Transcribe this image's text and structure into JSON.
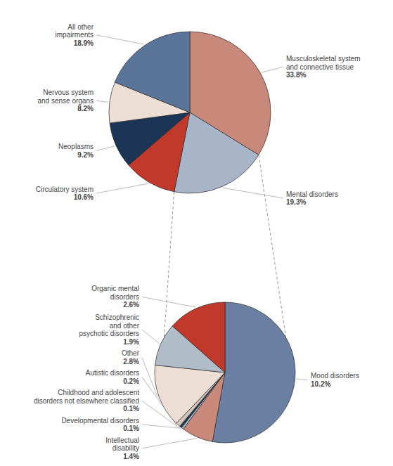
{
  "chart_data": [
    {
      "type": "pie",
      "categories": [
        "Musculoskeletal system\nand connective tissue",
        "Mental disorders",
        "Circulatory system",
        "Neoplasms",
        "Nervous system\nand sense organs",
        "All other\nimpairments"
      ],
      "values": [
        33.8,
        19.3,
        10.6,
        9.2,
        8.2,
        18.9
      ],
      "value_labels": [
        "33.8%",
        "19.3%",
        "10.6%",
        "9.2%",
        "8.2%",
        "18.9%"
      ],
      "colors": [
        "#c9897a",
        "#a8b5c8",
        "#c0392b",
        "#1c3557",
        "#ecddd5",
        "#5b7499"
      ],
      "data_labels": true
    },
    {
      "type": "pie",
      "categories": [
        "Mood disorders",
        "Intellectual\ndisability",
        "Childhood and adolescent\ndisorders not elsewhere classified",
        "Developmental disorders",
        "Autistic disorders",
        "Other",
        "Schizophrenic\nand other\npsychotic disorders",
        "Organic mental\ndisorders"
      ],
      "values": [
        10.2,
        1.4,
        0.1,
        0.1,
        0.2,
        2.8,
        1.9,
        2.6
      ],
      "value_labels": [
        "10.2%",
        "1.4%",
        "0.1%",
        "0.1%",
        "0.2%",
        "2.8%",
        "1.9%",
        "2.6%"
      ],
      "colors": [
        "#6b7fa3",
        "#c9897a",
        "#a8b5c8",
        "#1c3557",
        "#d4c4b5",
        "#ecddd5",
        "#b0bcc8",
        "#c0392b"
      ],
      "data_labels": true
    }
  ]
}
